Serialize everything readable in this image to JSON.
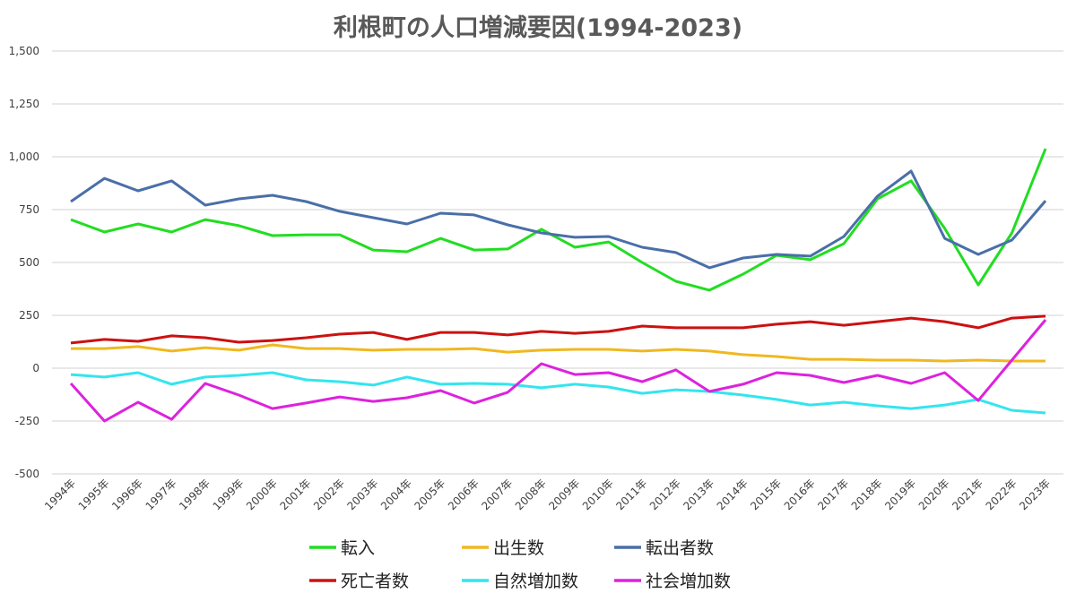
{
  "chart_data": {
    "type": "line",
    "title": "利根町の人口増減要因(1994-2023)",
    "xlabel": "",
    "ylabel": "",
    "ylim": [
      -500,
      1500
    ],
    "yticks": [
      -500,
      -250,
      0,
      250,
      500,
      750,
      1000,
      1250,
      1500
    ],
    "ytick_labels": [
      "-500",
      "-250",
      "0",
      "250",
      "500",
      "750",
      "1,000",
      "1,250",
      "1,500"
    ],
    "grid": true,
    "legend_position": "bottom",
    "categories": [
      "1994年",
      "1995年",
      "1996年",
      "1997年",
      "1998年",
      "1999年",
      "2000年",
      "2001年",
      "2002年",
      "2003年",
      "2004年",
      "2005年",
      "2006年",
      "2007年",
      "2008年",
      "2009年",
      "2010年",
      "2011年",
      "2012年",
      "2013年",
      "2014年",
      "2015年",
      "2016年",
      "2017年",
      "2018年",
      "2019年",
      "2020年",
      "2021年",
      "2022年",
      "2023年"
    ],
    "series": [
      {
        "name": "転入",
        "color": "#22dd22",
        "values": [
          703,
          644,
          682,
          644,
          703,
          674,
          627,
          631,
          631,
          559,
          551,
          614,
          559,
          564,
          657,
          572,
          597,
          500,
          411,
          369,
          445,
          534,
          513,
          589,
          801,
          886,
          661,
          394,
          640,
          1038
        ]
      },
      {
        "name": "出生数",
        "color": "#f0b820",
        "values": [
          93,
          93,
          102,
          81,
          97,
          85,
          110,
          93,
          93,
          85,
          89,
          89,
          93,
          76,
          85,
          89,
          89,
          81,
          89,
          81,
          64,
          55,
          42,
          42,
          38,
          38,
          34,
          38,
          34,
          34
        ]
      },
      {
        "name": "転出者数",
        "color": "#4a6fa8",
        "values": [
          788,
          898,
          839,
          886,
          771,
          801,
          818,
          788,
          742,
          712,
          682,
          733,
          725,
          678,
          640,
          619,
          623,
          572,
          547,
          475,
          521,
          538,
          530,
          623,
          814,
          932,
          614,
          538,
          606,
          792
        ]
      },
      {
        "name": "死亡者数",
        "color": "#cc1111",
        "values": [
          119,
          136,
          127,
          153,
          144,
          123,
          131,
          144,
          161,
          169,
          136,
          169,
          169,
          157,
          174,
          165,
          174,
          199,
          191,
          191,
          191,
          208,
          220,
          203,
          220,
          237,
          220,
          191,
          237,
          246
        ]
      },
      {
        "name": "自然増加数",
        "color": "#33e5ee",
        "values": [
          -30,
          -42,
          -21,
          -76,
          -42,
          -34,
          -21,
          -55,
          -64,
          -80,
          -42,
          -76,
          -72,
          -76,
          -93,
          -76,
          -89,
          -119,
          -102,
          -110,
          -127,
          -148,
          -174,
          -161,
          -178,
          -191,
          -174,
          -148,
          -199,
          -212
        ]
      },
      {
        "name": "社会増加数",
        "color": "#dd22dd",
        "values": [
          -72,
          -250,
          -161,
          -242,
          -72,
          -127,
          -191,
          -165,
          -136,
          -157,
          -140,
          -106,
          -165,
          -114,
          21,
          -30,
          -21,
          -64,
          -8,
          -110,
          -76,
          -21,
          -34,
          -68,
          -34,
          -72,
          -21,
          -153,
          38,
          229
        ]
      }
    ]
  }
}
